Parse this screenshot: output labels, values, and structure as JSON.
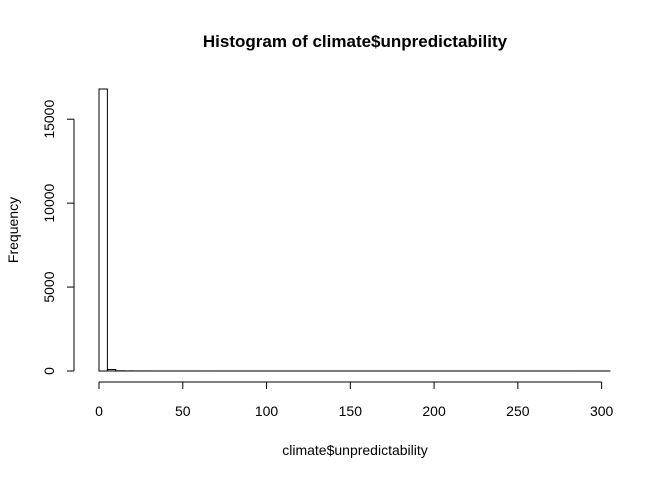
{
  "chart_data": {
    "type": "bar",
    "title": "Histogram of climate$unpredictability",
    "xlabel": "climate$unpredictability",
    "ylabel": "Frequency",
    "xlim": [
      0,
      305
    ],
    "ylim": [
      0,
      16800
    ],
    "xticks": [
      0,
      50,
      100,
      150,
      200,
      250,
      300
    ],
    "yticks": [
      0,
      5000,
      10000,
      15000
    ],
    "bin_width": 5,
    "bin_edges_start": 0,
    "values": [
      16800,
      90,
      12,
      6,
      4,
      3,
      2,
      2,
      1,
      1,
      1,
      1,
      1,
      1,
      1,
      1,
      1,
      1,
      1,
      1,
      1,
      1,
      1,
      1,
      1,
      1,
      1,
      1,
      1,
      1,
      1,
      1,
      1,
      1,
      1,
      1,
      1,
      1,
      1,
      1,
      1,
      1,
      1,
      1,
      1,
      1,
      1,
      1,
      1,
      1,
      1,
      1,
      1,
      1,
      1,
      1,
      1,
      1,
      1,
      1,
      1
    ],
    "grid": false
  }
}
